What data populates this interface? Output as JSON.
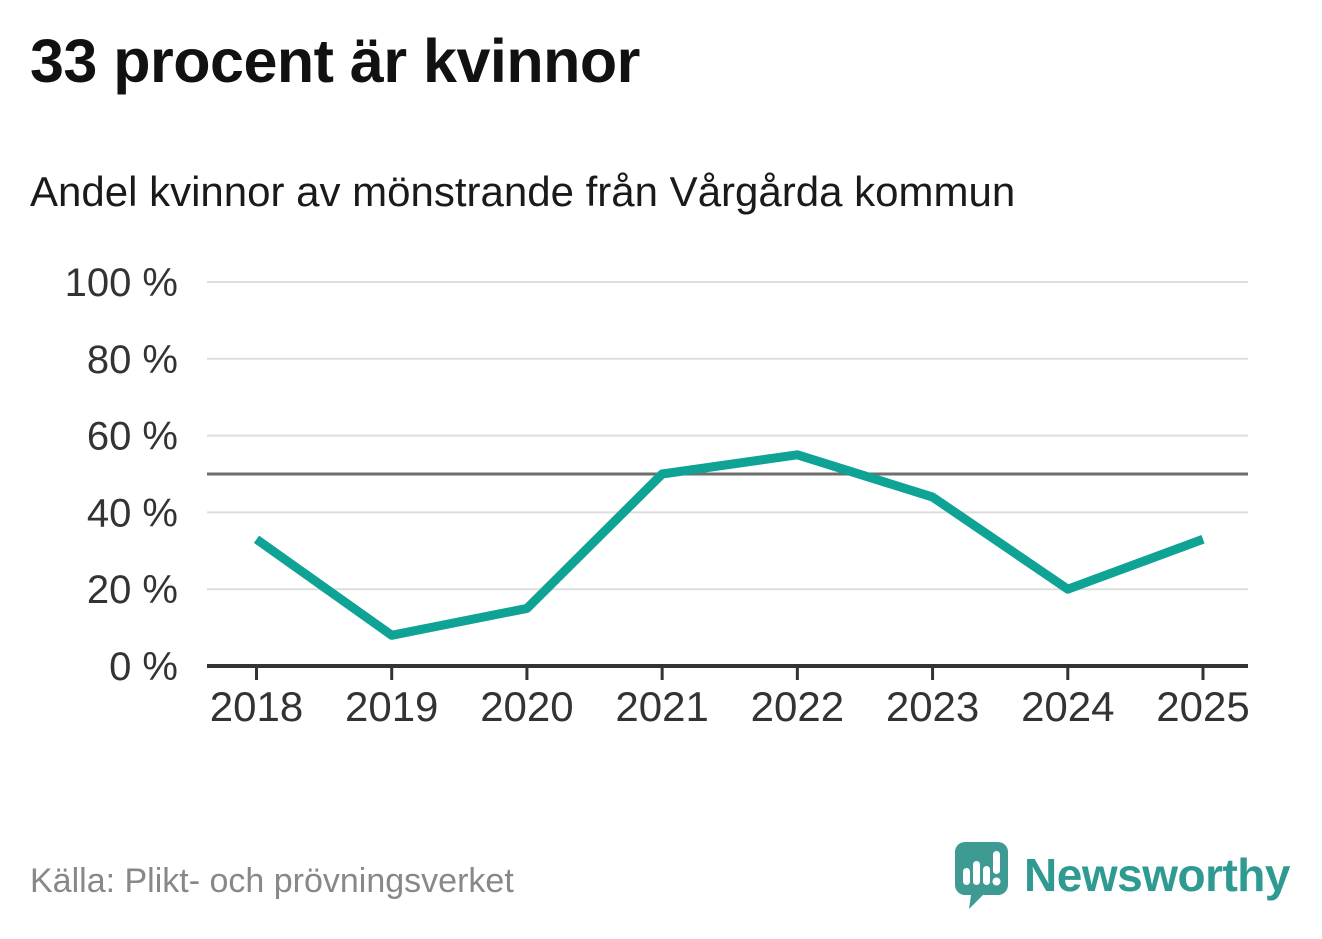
{
  "header": {
    "title": "33 procent är kvinnor",
    "subtitle": "Andel kvinnor av mönstrande från Vårgårda kommun"
  },
  "footer": {
    "source": "Källa: Plikt- och prövningsverket",
    "brand": "Newsworthy"
  },
  "colors": {
    "accent_line": "#0FA396",
    "logo_teal": "#3E9B94",
    "gridline": "#DEDEDE",
    "reference_line": "#6E6E6E",
    "axis": "#333333",
    "tick_label": "#333333"
  },
  "chart_data": {
    "type": "line",
    "title": "33 procent är kvinnor",
    "subtitle": "Andel kvinnor av mönstrande från Vårgårda kommun",
    "source": "Källa: Plikt- och prövningsverket",
    "categories": [
      "2018",
      "2019",
      "2020",
      "2021",
      "2022",
      "2023",
      "2024",
      "2025"
    ],
    "series": [
      {
        "name": "Andel kvinnor av mönstrande",
        "values": [
          33,
          8,
          15,
          50,
          55,
          44,
          20,
          33
        ],
        "color": "#0FA396"
      }
    ],
    "unit": "%",
    "ylim": [
      0,
      100
    ],
    "yticks": [
      0,
      20,
      40,
      60,
      80,
      100
    ],
    "ytick_labels": [
      "0 %",
      "20 %",
      "40 %",
      "60 %",
      "80 %",
      "100 %"
    ],
    "reference_line": {
      "value": 50,
      "color": "#6E6E6E"
    },
    "grid": true,
    "legend": "none"
  }
}
